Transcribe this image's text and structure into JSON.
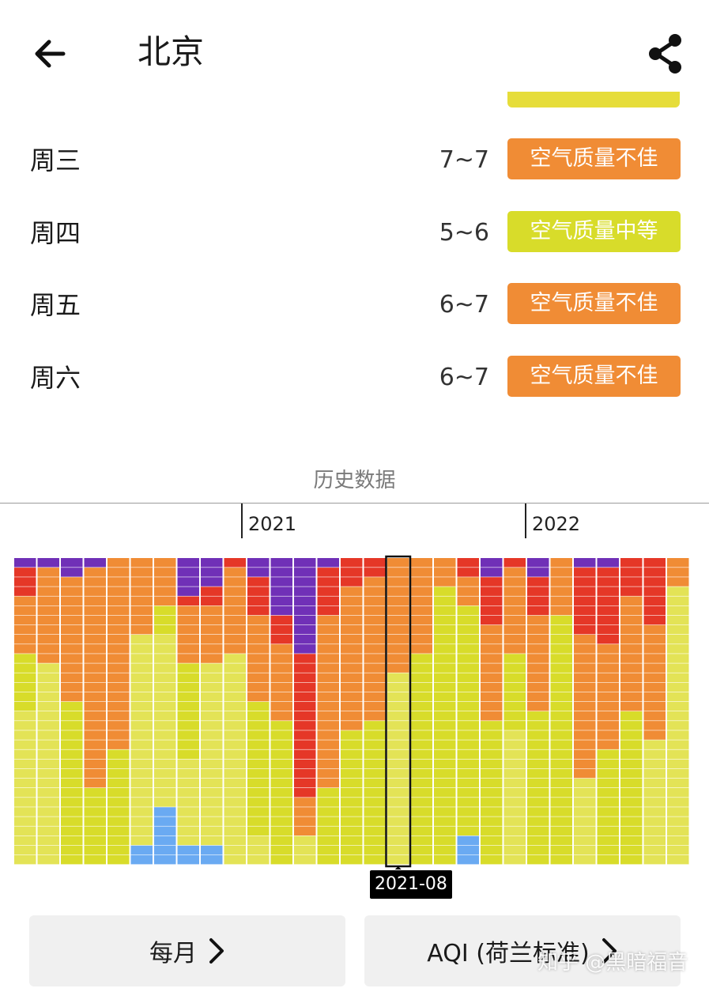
{
  "header": {
    "title": "北京",
    "back_icon": "arrow-left-icon",
    "share_icon": "share-icon"
  },
  "forecast": [
    {
      "day": "周三",
      "range": "7~7",
      "label": "空气质量不佳",
      "color": "#f08c35"
    },
    {
      "day": "周四",
      "range": "5~6",
      "label": "空气质量中等",
      "color": "#d8dc2a"
    },
    {
      "day": "周五",
      "range": "6~7",
      "label": "空气质量不佳",
      "color": "#f08c35"
    },
    {
      "day": "周六",
      "range": "6~7",
      "label": "空气质量不佳",
      "color": "#f08c35"
    }
  ],
  "history": {
    "section_label": "历史数据",
    "year_labels": [
      "2021",
      "2022"
    ],
    "tooltip": "2021-08"
  },
  "colors": {
    "blue": "#6aaaf2",
    "light_yellow": "#e3e356",
    "yellow": "#d8dc2a",
    "orange": "#f08c35",
    "red": "#e53727",
    "purple": "#7030b7"
  },
  "chart_data": {
    "type": "heatmap",
    "months": 29,
    "selected_index": 16,
    "columns": [
      [
        [
          "purple",
          1
        ],
        [
          "red",
          3
        ],
        [
          "orange",
          6
        ],
        [
          "yellow",
          6
        ],
        [
          "light_yellow",
          16
        ]
      ],
      [
        [
          "purple",
          1
        ],
        [
          "orange",
          10
        ],
        [
          "light_yellow",
          21
        ]
      ],
      [
        [
          "purple",
          2
        ],
        [
          "orange",
          13
        ],
        [
          "yellow",
          17
        ]
      ],
      [
        [
          "purple",
          1
        ],
        [
          "orange",
          23
        ],
        [
          "yellow",
          8
        ]
      ],
      [
        [
          "orange",
          20
        ],
        [
          "yellow",
          12
        ]
      ],
      [
        [
          "orange",
          8
        ],
        [
          "light_yellow",
          22
        ],
        [
          "blue",
          2
        ]
      ],
      [
        [
          "orange",
          5
        ],
        [
          "yellow",
          3
        ],
        [
          "light_yellow",
          18
        ],
        [
          "blue",
          6
        ]
      ],
      [
        [
          "purple",
          4
        ],
        [
          "red",
          1
        ],
        [
          "orange",
          6
        ],
        [
          "yellow",
          10
        ],
        [
          "light_yellow",
          9
        ],
        [
          "blue",
          2
        ]
      ],
      [
        [
          "purple",
          3
        ],
        [
          "red",
          2
        ],
        [
          "orange",
          6
        ],
        [
          "light_yellow",
          19
        ],
        [
          "blue",
          2
        ]
      ],
      [
        [
          "red",
          1
        ],
        [
          "orange",
          9
        ],
        [
          "light_yellow",
          22
        ]
      ],
      [
        [
          "purple",
          2
        ],
        [
          "red",
          4
        ],
        [
          "orange",
          9
        ],
        [
          "yellow",
          14
        ],
        [
          "light_yellow",
          3
        ]
      ],
      [
        [
          "purple",
          6
        ],
        [
          "red",
          3
        ],
        [
          "orange",
          8
        ],
        [
          "yellow",
          15
        ]
      ],
      [
        [
          "purple",
          10
        ],
        [
          "red",
          15
        ],
        [
          "orange",
          4
        ],
        [
          "light_yellow",
          3
        ]
      ],
      [
        [
          "purple",
          1
        ],
        [
          "red",
          5
        ],
        [
          "orange",
          18
        ],
        [
          "yellow",
          8
        ]
      ],
      [
        [
          "red",
          3
        ],
        [
          "orange",
          15
        ],
        [
          "yellow",
          14
        ]
      ],
      [
        [
          "red",
          2
        ],
        [
          "orange",
          15
        ],
        [
          "yellow",
          15
        ]
      ],
      [
        [
          "orange",
          12
        ],
        [
          "light_yellow",
          20
        ]
      ],
      [
        [
          "orange",
          10
        ],
        [
          "yellow",
          22
        ]
      ],
      [
        [
          "orange",
          3
        ],
        [
          "yellow",
          29
        ]
      ],
      [
        [
          "red",
          2
        ],
        [
          "orange",
          3
        ],
        [
          "yellow",
          24
        ],
        [
          "blue",
          3
        ]
      ],
      [
        [
          "purple",
          2
        ],
        [
          "red",
          5
        ],
        [
          "orange",
          10
        ],
        [
          "yellow",
          15
        ]
      ],
      [
        [
          "red",
          1
        ],
        [
          "orange",
          9
        ],
        [
          "yellow",
          8
        ],
        [
          "light_yellow",
          14
        ]
      ],
      [
        [
          "purple",
          2
        ],
        [
          "red",
          4
        ],
        [
          "orange",
          10
        ],
        [
          "yellow",
          16
        ]
      ],
      [
        [
          "orange",
          6
        ],
        [
          "yellow",
          26
        ]
      ],
      [
        [
          "purple",
          1
        ],
        [
          "red",
          7
        ],
        [
          "orange",
          15
        ],
        [
          "light_yellow",
          9
        ]
      ],
      [
        [
          "purple",
          1
        ],
        [
          "red",
          8
        ],
        [
          "orange",
          11
        ],
        [
          "yellow",
          12
        ]
      ],
      [
        [
          "red",
          4
        ],
        [
          "orange",
          12
        ],
        [
          "yellow",
          16
        ]
      ],
      [
        [
          "red",
          7
        ],
        [
          "orange",
          12
        ],
        [
          "light_yellow",
          13
        ]
      ],
      [
        [
          "orange",
          3
        ],
        [
          "light_yellow",
          29
        ]
      ]
    ]
  },
  "buttons": {
    "left": {
      "label": "每月",
      "icon": "chevron-right-icon"
    },
    "right": {
      "label": "AQI (荷兰标准)",
      "icon": "chevron-right-icon"
    }
  },
  "watermark": "知乎 @黑暗福音"
}
